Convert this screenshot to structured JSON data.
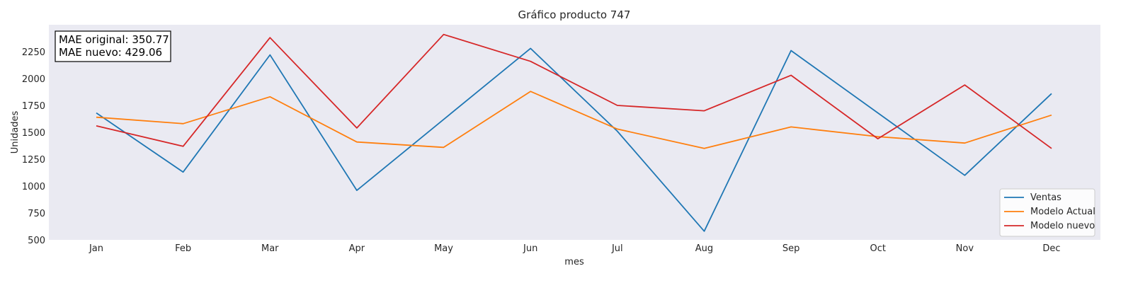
{
  "chart_data": {
    "type": "line",
    "title": "Gráfico producto 747",
    "xlabel": "mes",
    "ylabel": "Unidades",
    "categories": [
      "Jan",
      "Feb",
      "Mar",
      "Apr",
      "May",
      "Jun",
      "Jul",
      "Aug",
      "Sep",
      "Oct",
      "Nov",
      "Dec"
    ],
    "ylim": [
      500,
      2500
    ],
    "yticks": [
      500,
      750,
      1000,
      1250,
      1500,
      1750,
      2000,
      2250
    ],
    "grid": false,
    "legend_position": "bottom-right",
    "series": [
      {
        "name": "Ventas",
        "color": "#1f77b4",
        "values": [
          1680,
          1130,
          2220,
          960,
          1620,
          2280,
          1510,
          580,
          2260,
          1680,
          1100,
          1860
        ]
      },
      {
        "name": "Modelo Actual",
        "color": "#ff7f0e",
        "values": [
          1640,
          1580,
          1830,
          1410,
          1360,
          1880,
          1530,
          1350,
          1550,
          1460,
          1400,
          1660
        ]
      },
      {
        "name": "Modelo nuevo",
        "color": "#d62728",
        "values": [
          1560,
          1370,
          2380,
          1540,
          2410,
          2160,
          1750,
          1700,
          2030,
          1440,
          1940,
          1350
        ]
      }
    ],
    "annotations": {
      "mae_original": "MAE original: 350.77",
      "mae_nuevo": "MAE nuevo: 429.06"
    }
  }
}
